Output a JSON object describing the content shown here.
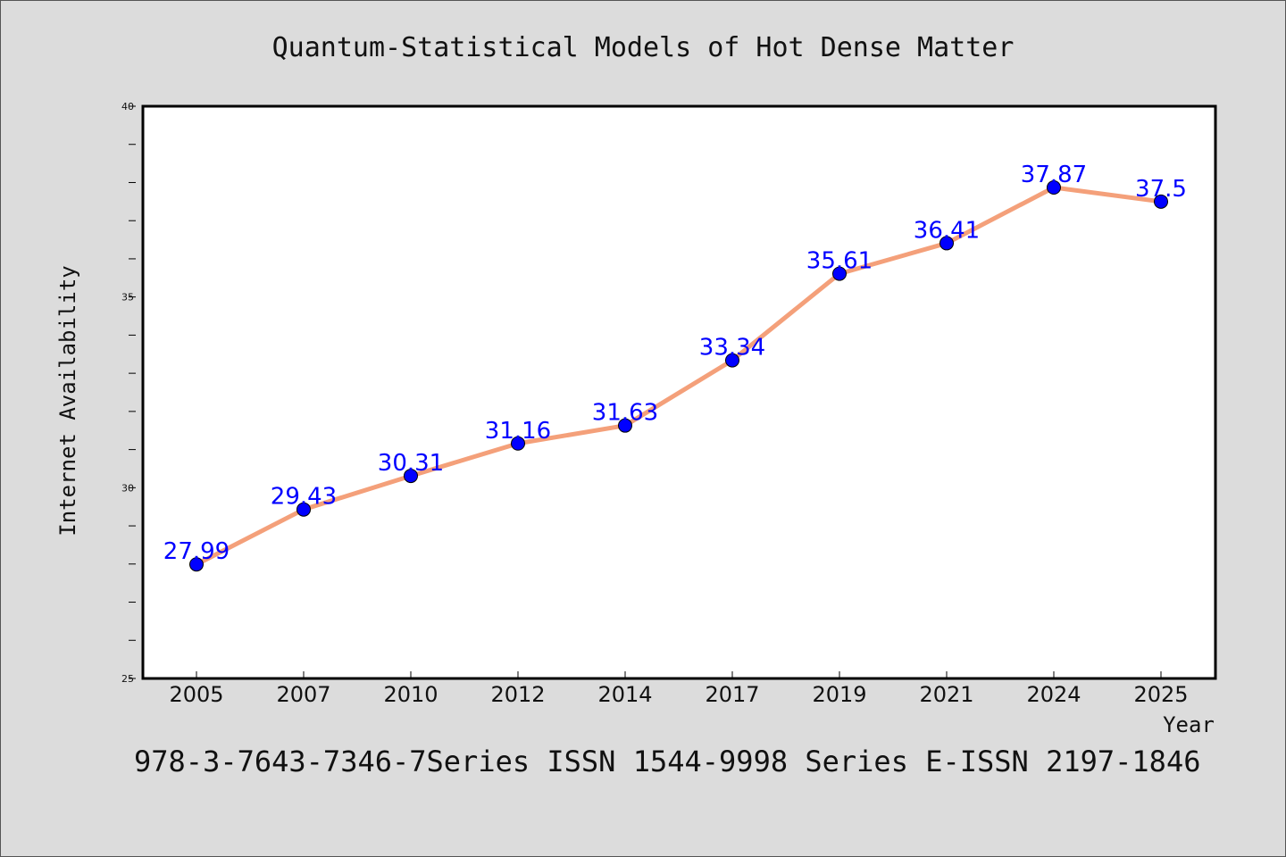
{
  "chart_data": {
    "type": "line",
    "title": "Quantum-Statistical Models of Hot Dense Matter",
    "xlabel": "Year",
    "ylabel": "Internet Availability",
    "categories": [
      "2005",
      "2007",
      "2010",
      "2012",
      "2014",
      "2017",
      "2019",
      "2021",
      "2024",
      "2025"
    ],
    "series": [
      {
        "values": [
          27.99,
          29.43,
          30.31,
          31.16,
          31.63,
          33.34,
          35.61,
          36.41,
          37.87,
          37.5
        ],
        "line_color": "#f4a07a",
        "marker_color": "#0000ff"
      }
    ],
    "data_labels": [
      "27.99",
      "29.43",
      "30.31",
      "31.16",
      "31.63",
      "33.34",
      "35.61",
      "36.41",
      "37.87",
      "37.5"
    ],
    "ylim": [
      25,
      40
    ],
    "yticks": [
      "25",
      "30",
      "35",
      "40"
    ],
    "grid": false,
    "footer": "978-3-7643-7346-7Series ISSN 1544-9998 Series E-ISSN 2197-1846"
  }
}
